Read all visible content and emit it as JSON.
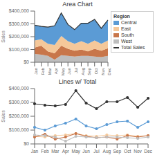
{
  "chart_data": [
    {
      "type": "area",
      "stacked": true,
      "title": "Area Chart",
      "y_label": "Sales",
      "categories": [
        "Jan",
        "Feb",
        "Mar",
        "Apr",
        "May",
        "Jun",
        "Jul",
        "Aug",
        "Sep",
        "Oct",
        "Nov",
        "Dec"
      ],
      "series": [
        {
          "name": "Central",
          "type": "area",
          "color": "#5B9BD5",
          "values": [
            120000,
            100000,
            130000,
            150000,
            180000,
            130000,
            110000,
            140000,
            160000,
            165000,
            120000,
            160000
          ]
        },
        {
          "name": "East",
          "type": "area",
          "color": "#F5C89A",
          "values": [
            55000,
            50000,
            60000,
            65000,
            75000,
            60000,
            55000,
            65000,
            60000,
            65000,
            55000,
            60000
          ]
        },
        {
          "name": "South",
          "type": "area",
          "color": "#C8764A",
          "values": [
            50000,
            70000,
            35000,
            50000,
            75000,
            55000,
            45000,
            50000,
            35000,
            60000,
            50000,
            60000
          ]
        },
        {
          "name": "West",
          "type": "area",
          "color": "#BEBEBE",
          "values": [
            65000,
            60000,
            50000,
            20000,
            55000,
            50000,
            45000,
            50000,
            50000,
            45000,
            40000,
            50000
          ]
        },
        {
          "name": "Total Sales",
          "type": "line",
          "color": "#333333",
          "values": [
            290000,
            280000,
            275000,
            285000,
            385000,
            295000,
            255000,
            305000,
            305000,
            335000,
            265000,
            330000
          ]
        }
      ],
      "ylim": [
        0,
        400000
      ],
      "yticks": [
        {
          "value": 0,
          "label": "$0"
        },
        {
          "value": 100000,
          "label": "$100,000"
        },
        {
          "value": 200000,
          "label": "$200,000"
        },
        {
          "value": 300000,
          "label": "$300,000"
        },
        {
          "value": 400000,
          "label": "$400,000"
        }
      ],
      "legend": "upper right",
      "legend_title": "Region"
    },
    {
      "type": "line",
      "title": "Lines w/ Total",
      "y_label": "Sales",
      "categories": [
        "Jan",
        "Feb",
        "Mar",
        "Apr",
        "May",
        "Jun",
        "Jul",
        "Aug",
        "Sep",
        "Oct",
        "Nov",
        "Dec"
      ],
      "series": [
        {
          "name": "Total Sales",
          "color": "#333333",
          "marker": "circle",
          "values": [
            290000,
            280000,
            275000,
            285000,
            385000,
            295000,
            255000,
            305000,
            305000,
            335000,
            265000,
            330000
          ]
        },
        {
          "name": "Central",
          "color": "#5B9BD5",
          "marker": "circle",
          "values": [
            120000,
            100000,
            130000,
            150000,
            180000,
            130000,
            110000,
            140000,
            160000,
            165000,
            120000,
            160000
          ]
        },
        {
          "name": "East",
          "color": "#F5C89A",
          "marker": "circle",
          "values": [
            55000,
            50000,
            60000,
            65000,
            75000,
            60000,
            55000,
            65000,
            60000,
            65000,
            55000,
            60000
          ]
        },
        {
          "name": "South",
          "color": "#C8764A",
          "marker": "circle",
          "values": [
            50000,
            70000,
            35000,
            50000,
            75000,
            55000,
            45000,
            50000,
            35000,
            60000,
            50000,
            60000
          ]
        },
        {
          "name": "West",
          "color": "#BEBEBE",
          "marker": "circle",
          "values": [
            65000,
            60000,
            50000,
            20000,
            55000,
            50000,
            45000,
            50000,
            50000,
            45000,
            40000,
            50000
          ]
        }
      ],
      "ylim": [
        0,
        400000
      ],
      "yticks": [
        {
          "value": 0,
          "label": "$0"
        },
        {
          "value": 100000,
          "label": "$100,000"
        },
        {
          "value": 200000,
          "label": "$200,000"
        },
        {
          "value": 300000,
          "label": "$300,000"
        },
        {
          "value": 400000,
          "label": "$400,000"
        }
      ]
    }
  ]
}
